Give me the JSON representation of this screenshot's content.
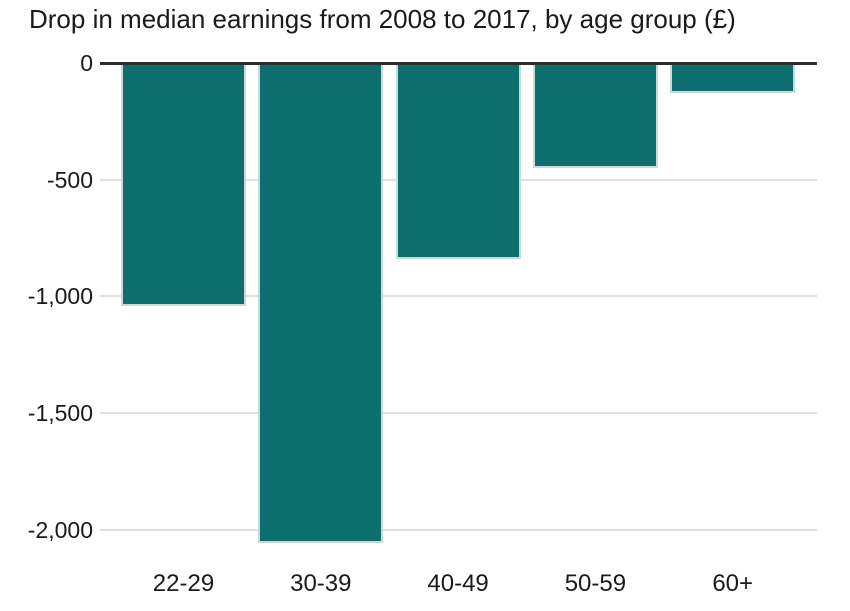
{
  "chart_data": {
    "type": "bar",
    "title": "Drop in median earnings from 2008 to 2017, by age group (£)",
    "categories": [
      "22-29",
      "30-39",
      "40-49",
      "50-59",
      "60+"
    ],
    "values": [
      -1040,
      -2060,
      -840,
      -450,
      -130
    ],
    "xlabel": "",
    "ylabel": "",
    "ylim": [
      -2100,
      0
    ],
    "y_ticks": [
      {
        "label": "0",
        "value": 0
      },
      {
        "label": "-500",
        "value": -500
      },
      {
        "label": "-1,000",
        "value": -1000
      },
      {
        "label": "-1,500",
        "value": -1500
      },
      {
        "label": "-2,000",
        "value": -2000
      }
    ],
    "grid": "horizontal",
    "legend": "none",
    "colors": {
      "bar": "#0e6e6e",
      "bar_edge": "#c6dcd9",
      "zero_axis": "#2e2e2e",
      "gridline": "#e0e0e0",
      "text": "#1a1a1a"
    }
  }
}
